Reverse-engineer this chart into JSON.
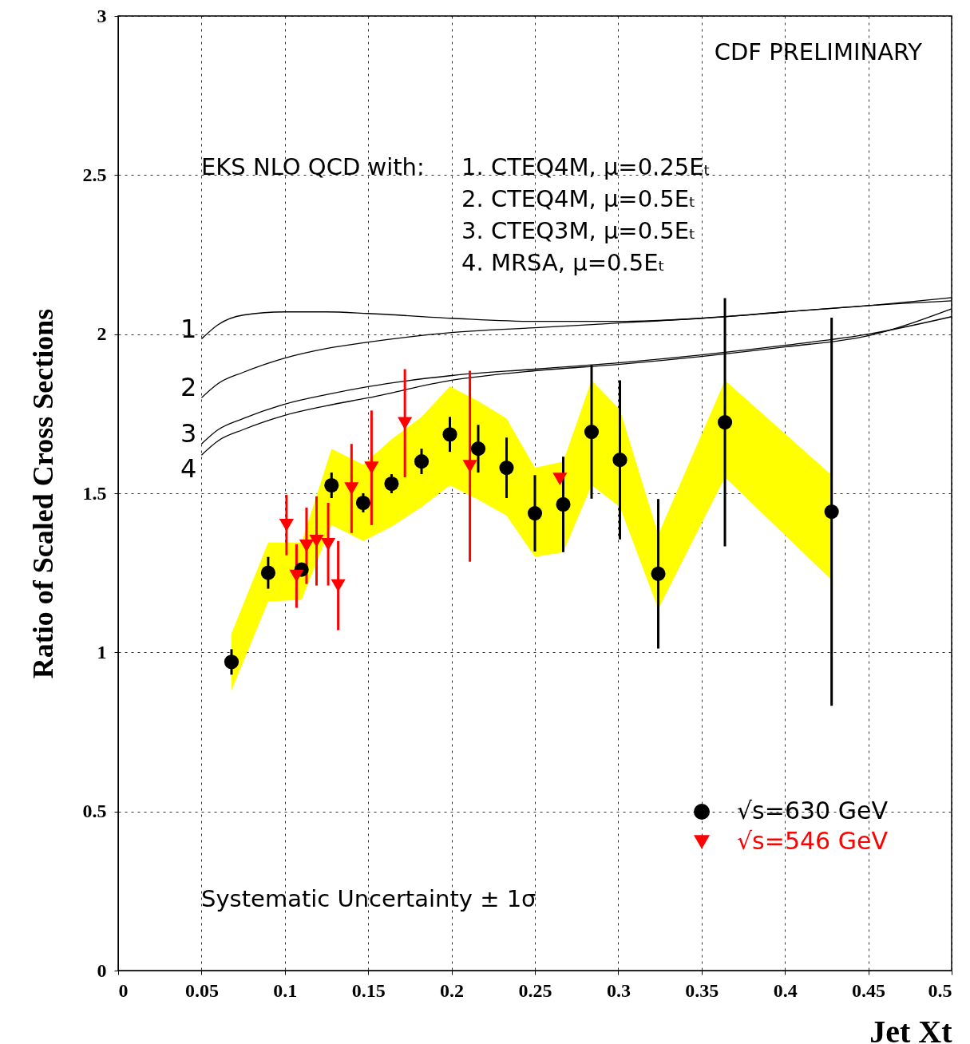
{
  "chart_data": {
    "type": "scatter",
    "xlabel": "Jet Xt",
    "ylabel": "Ratio of Scaled Cross Sections",
    "xlim": [
      0,
      0.5
    ],
    "xticks": [
      0,
      0.05,
      0.1,
      0.15,
      0.2,
      0.25,
      0.3,
      0.35,
      0.4,
      0.45,
      0.5
    ],
    "ylim": [
      0,
      3
    ],
    "yticks": [
      0,
      0.5,
      1,
      1.5,
      2,
      2.5,
      3
    ],
    "grid": true,
    "legend": "bottom right",
    "annotations": [
      "CDF PRELIMINARY",
      "EKS NLO QCD with:",
      "1. CTEQ4M, μ=0.25Eₜ",
      "2. CTEQ4M, μ=0.5Eₜ",
      "3. CTEQ3M, μ=0.5Eₜ",
      "4. MRSA, μ=0.5Eₜ",
      "Systematic Uncertainty ± 1σ"
    ],
    "series": [
      {
        "type": "line",
        "name": "1",
        "color": "#000000",
        "x": [
          0.05,
          0.06,
          0.075,
          0.1,
          0.125,
          0.15,
          0.2,
          0.25,
          0.3,
          0.35,
          0.4,
          0.45,
          0.5
        ],
        "values": [
          1.985,
          2.03,
          2.06,
          2.07,
          2.07,
          2.065,
          2.05,
          2.04,
          2.04,
          2.05,
          2.07,
          2.09,
          2.115
        ]
      },
      {
        "type": "line",
        "name": "2",
        "color": "#000000",
        "x": [
          0.05,
          0.06,
          0.075,
          0.1,
          0.125,
          0.15,
          0.2,
          0.25,
          0.3,
          0.35,
          0.4,
          0.45,
          0.5
        ],
        "values": [
          1.8,
          1.845,
          1.88,
          1.925,
          1.955,
          1.975,
          2.005,
          2.02,
          2.035,
          2.05,
          2.07,
          2.09,
          2.105
        ]
      },
      {
        "type": "line",
        "name": "3",
        "color": "#000000",
        "x": [
          0.05,
          0.06,
          0.075,
          0.1,
          0.125,
          0.15,
          0.2,
          0.25,
          0.3,
          0.35,
          0.4,
          0.45,
          0.5
        ],
        "values": [
          1.655,
          1.7,
          1.735,
          1.78,
          1.81,
          1.835,
          1.87,
          1.89,
          1.91,
          1.935,
          1.965,
          2.0,
          2.055
        ]
      },
      {
        "type": "line",
        "name": "4",
        "color": "#000000",
        "x": [
          0.05,
          0.06,
          0.075,
          0.1,
          0.125,
          0.15,
          0.2,
          0.25,
          0.3,
          0.35,
          0.4,
          0.45,
          0.5
        ],
        "values": [
          1.62,
          1.665,
          1.7,
          1.745,
          1.775,
          1.8,
          1.855,
          1.885,
          1.905,
          1.93,
          1.96,
          1.995,
          2.08
        ]
      },
      {
        "name": "√s=630 GeV",
        "color": "#000000",
        "marker": "circle",
        "lower": [
          0.88,
          1.16,
          1.165,
          1.4,
          1.35,
          1.395,
          1.457,
          1.525,
          1.48,
          1.43,
          1.3,
          1.315,
          1.525,
          1.457,
          1.136,
          1.55,
          1.227
        ],
        "upper": [
          1.06,
          1.345,
          1.345,
          1.64,
          1.59,
          1.67,
          1.74,
          1.836,
          1.79,
          1.735,
          1.58,
          1.6,
          1.855,
          1.763,
          1.37,
          1.855,
          1.557
        ],
        "x": [
          0.068,
          0.09,
          0.11,
          0.128,
          0.147,
          0.164,
          0.182,
          0.199,
          0.216,
          0.233,
          0.25,
          0.267,
          0.284,
          0.301,
          0.324,
          0.364,
          0.428
        ],
        "values": [
          0.97,
          1.25,
          1.26,
          1.525,
          1.47,
          1.53,
          1.6,
          1.685,
          1.64,
          1.58,
          1.437,
          1.465,
          1.693,
          1.605,
          1.247,
          1.723,
          1.442
        ],
        "errors": [
          0.04,
          0.05,
          0.02,
          0.04,
          0.03,
          0.03,
          0.04,
          0.055,
          0.075,
          0.095,
          0.12,
          0.15,
          0.21,
          0.25,
          0.235,
          0.39,
          0.61
        ]
      },
      {
        "name": "√s=546 GeV",
        "color": "#ff0000",
        "marker": "triangle",
        "x": [
          0.101,
          0.107,
          0.113,
          0.119,
          0.126,
          0.132,
          0.14,
          0.152,
          0.172,
          0.211,
          0.265
        ],
        "values": [
          1.4,
          1.24,
          1.335,
          1.35,
          1.34,
          1.21,
          1.515,
          1.58,
          1.72,
          1.585,
          1.545
        ],
        "errors": [
          0.095,
          0.1,
          0.12,
          0.14,
          0.13,
          0.14,
          0.14,
          0.18,
          0.17,
          0.3,
          null
        ]
      }
    ]
  }
}
